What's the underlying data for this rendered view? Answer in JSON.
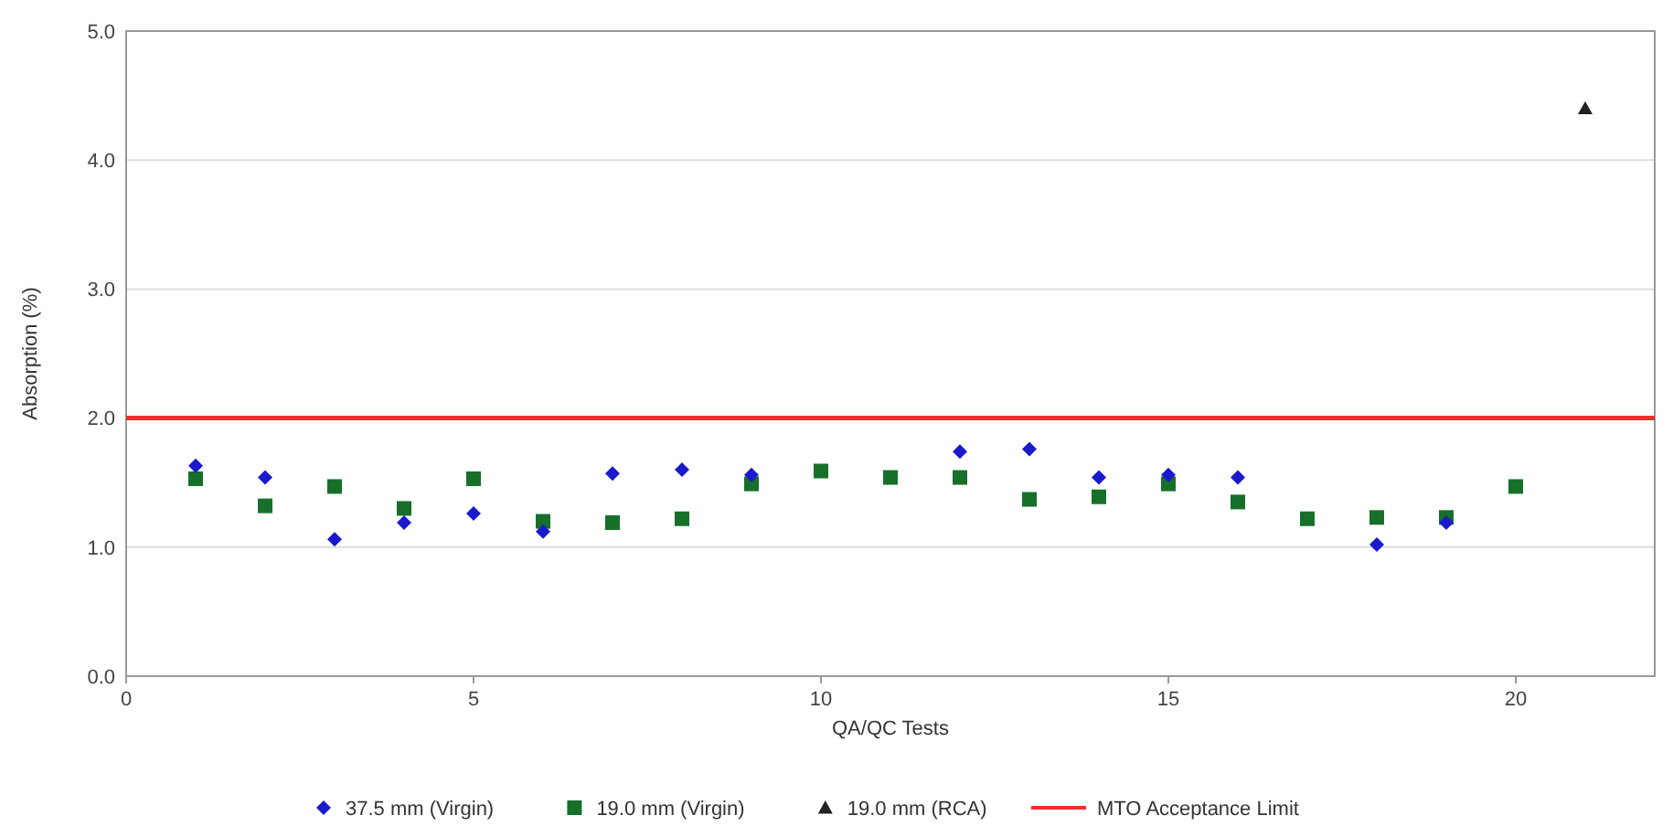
{
  "chart_data": {
    "type": "scatter",
    "xlabel": "QA/QC Tests",
    "ylabel": "Absorption (%)",
    "xlim": [
      0,
      22
    ],
    "xticks": [
      0,
      5,
      10,
      15,
      20
    ],
    "ylim": [
      0,
      5
    ],
    "yticks": [
      {
        "value": 0,
        "label": "0.0"
      },
      {
        "value": 1,
        "label": "1.0"
      },
      {
        "value": 2,
        "label": "2.0"
      },
      {
        "value": 3,
        "label": "3.0"
      },
      {
        "value": 4,
        "label": "4.0"
      },
      {
        "value": 5,
        "label": "5.0"
      }
    ],
    "grid": "y",
    "legend": "bottom",
    "series": [
      {
        "name": "37.5 mm (Virgin)",
        "color": "#1a1acc",
        "marker": "diamond",
        "x": [
          1,
          2,
          3,
          4,
          5,
          6,
          7,
          8,
          9,
          12,
          13,
          14,
          15,
          16,
          18,
          19
        ],
        "values": [
          1.63,
          1.54,
          1.06,
          1.19,
          1.26,
          1.12,
          1.57,
          1.6,
          1.56,
          1.74,
          1.76,
          1.54,
          1.56,
          1.54,
          1.02,
          1.19
        ]
      },
      {
        "name": "19.0 mm (Virgin)",
        "color": "#16702a",
        "marker": "square",
        "x": [
          1,
          2,
          3,
          4,
          5,
          6,
          7,
          8,
          9,
          10,
          11,
          12,
          13,
          14,
          15,
          16,
          17,
          18,
          19,
          20
        ],
        "values": [
          1.53,
          1.32,
          1.47,
          1.3,
          1.53,
          1.2,
          1.19,
          1.22,
          1.49,
          1.59,
          1.54,
          1.54,
          1.37,
          1.39,
          1.49,
          1.35,
          1.22,
          1.23,
          1.23,
          1.47
        ]
      },
      {
        "name": "19.0 mm (RCA)",
        "color": "#222222",
        "marker": "triangle",
        "x": [
          21
        ],
        "values": [
          4.4
        ]
      }
    ],
    "ref_lines": [
      {
        "axis": "y",
        "value": 2,
        "label": "MTO Acceptance Limit",
        "color": "#e8322a"
      }
    ]
  }
}
